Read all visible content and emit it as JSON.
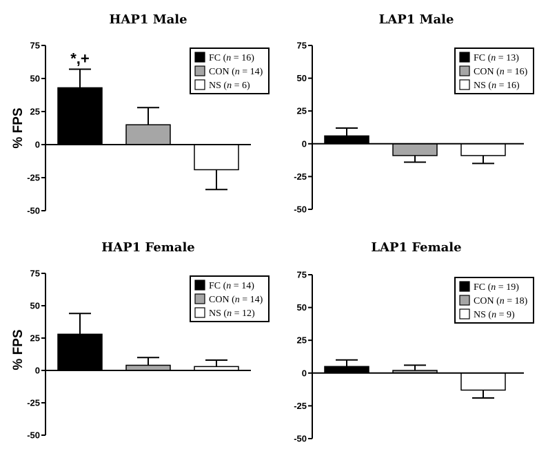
{
  "chart_data": [
    {
      "type": "bar",
      "title": "HAP1 Male",
      "ylabel": "% FPS",
      "ylim": [
        -50,
        75
      ],
      "yticks": [
        75,
        50,
        25,
        0,
        -25,
        -50
      ],
      "grid": false,
      "legend_position": "top-right",
      "categories": [
        "FC",
        "CON",
        "NS"
      ],
      "values": [
        43,
        15,
        -19
      ],
      "errors": [
        14,
        13,
        15
      ],
      "colors": [
        "#000000",
        "#a6a6a6",
        "#ffffff"
      ],
      "legend": [
        {
          "label": "FC",
          "n": "16"
        },
        {
          "label": "CON",
          "n": "14"
        },
        {
          "label": "NS",
          "n": "6"
        }
      ],
      "annotations": [
        {
          "category": "FC",
          "text": "*,+"
        }
      ]
    },
    {
      "type": "bar",
      "title": "LAP1 Male",
      "ylabel": "",
      "ylim": [
        -50,
        75
      ],
      "yticks": [
        75,
        50,
        25,
        0,
        -25,
        -50
      ],
      "grid": false,
      "legend_position": "top-right",
      "categories": [
        "FC",
        "CON",
        "NS"
      ],
      "values": [
        6,
        -9,
        -9
      ],
      "errors": [
        6,
        5,
        6
      ],
      "colors": [
        "#000000",
        "#a6a6a6",
        "#ffffff"
      ],
      "legend": [
        {
          "label": "FC",
          "n": "13"
        },
        {
          "label": "CON",
          "n": "16"
        },
        {
          "label": "NS",
          "n": "16"
        }
      ],
      "annotations": []
    },
    {
      "type": "bar",
      "title": "HAP1 Female",
      "ylabel": "% FPS",
      "ylim": [
        -50,
        75
      ],
      "yticks": [
        75,
        50,
        25,
        0,
        -25,
        -50
      ],
      "grid": false,
      "legend_position": "top-right",
      "categories": [
        "FC",
        "CON",
        "NS"
      ],
      "values": [
        28,
        4,
        3
      ],
      "errors": [
        16,
        6,
        5
      ],
      "colors": [
        "#000000",
        "#a6a6a6",
        "#ffffff"
      ],
      "legend": [
        {
          "label": "FC",
          "n": "14"
        },
        {
          "label": "CON",
          "n": "14"
        },
        {
          "label": "NS",
          "n": "12"
        }
      ],
      "annotations": []
    },
    {
      "type": "bar",
      "title": "LAP1 Female",
      "ylabel": "",
      "ylim": [
        -50,
        75
      ],
      "yticks": [
        75,
        50,
        25,
        0,
        -25,
        -50
      ],
      "grid": false,
      "legend_position": "top-right",
      "categories": [
        "FC",
        "CON",
        "NS"
      ],
      "values": [
        5,
        2,
        -13
      ],
      "errors": [
        5,
        4,
        6
      ],
      "colors": [
        "#000000",
        "#a6a6a6",
        "#ffffff"
      ],
      "legend": [
        {
          "label": "FC",
          "n": "19"
        },
        {
          "label": "CON",
          "n": "18"
        },
        {
          "label": "NS",
          "n": "9"
        }
      ],
      "annotations": []
    }
  ]
}
